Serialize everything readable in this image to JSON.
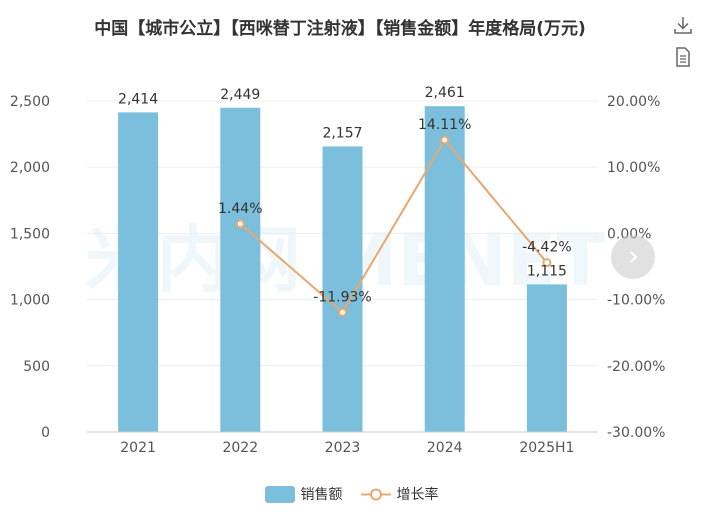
{
  "title": "中国【城市公立】【西咪替丁注射液】【销售金额】年度格局(万元)",
  "toolbar": {
    "download_icon": "download-icon",
    "data_view_icon": "data-view-icon"
  },
  "watermark": "米内网 MENET",
  "next_button_icon": "chevron-right-icon",
  "colors": {
    "bar": "#7bbfdc",
    "line": "#e8a76e",
    "grid": "#eeeeee",
    "axis_text": "#555555",
    "label_text": "#333333"
  },
  "chart_data": {
    "type": "bar",
    "categories": [
      "2021",
      "2022",
      "2023",
      "2024",
      "2025H1"
    ],
    "series": [
      {
        "name": "销售额",
        "type": "bar",
        "axis": "left",
        "values": [
          2414,
          2449,
          2157,
          2461,
          1115
        ],
        "labels": [
          "2,414",
          "2,449",
          "2,157",
          "2,461",
          "1,115"
        ]
      },
      {
        "name": "增长率",
        "type": "line",
        "axis": "right",
        "values": [
          null,
          1.44,
          -11.93,
          14.11,
          -4.42
        ],
        "labels": [
          "",
          "1.44%",
          "-11.93%",
          "14.11%",
          "-4.42%"
        ]
      }
    ],
    "left_axis": {
      "min": 0,
      "max": 2500,
      "ticks": [
        0,
        500,
        1000,
        1500,
        2000,
        2500
      ],
      "tick_labels": [
        "0",
        "500",
        "1,000",
        "1,500",
        "2,000",
        "2,500"
      ]
    },
    "right_axis": {
      "min": -30,
      "max": 20,
      "ticks": [
        -30,
        -20,
        -10,
        0,
        10,
        20
      ],
      "tick_labels": [
        "-30.00%",
        "-20.00%",
        "-10.00%",
        "0.00%",
        "10.00%",
        "20.00%"
      ]
    },
    "legend": {
      "position": "bottom",
      "items": [
        "销售额",
        "增长率"
      ]
    }
  }
}
